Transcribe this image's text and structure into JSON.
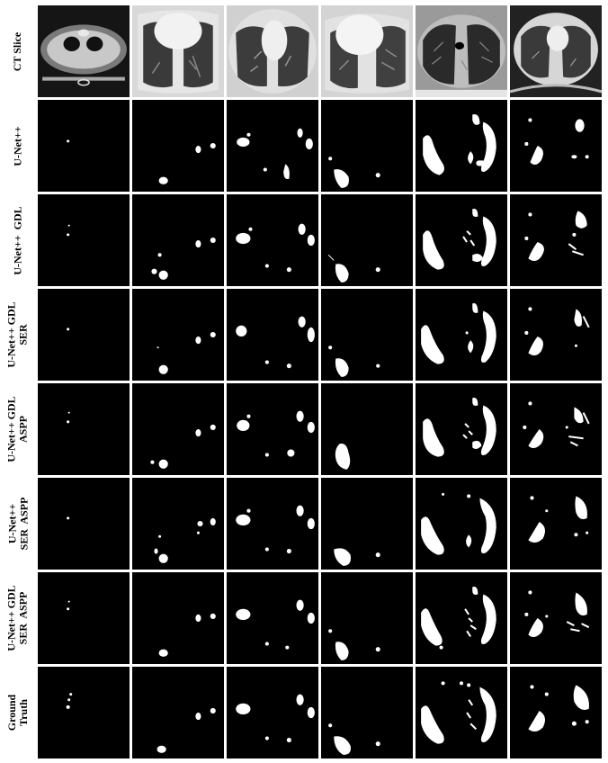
{
  "figure": {
    "rows": [
      {
        "label": "CT Slice",
        "kind": "ct"
      },
      {
        "label": "U-Net++",
        "kind": "mask"
      },
      {
        "label": "U-Net++  GDL",
        "kind": "mask"
      },
      {
        "label": "U-Net++ GDL\nSER",
        "kind": "mask"
      },
      {
        "label": "U-Net++ GDL\nASPP",
        "kind": "mask"
      },
      {
        "label": "U-Net++\nSER  ASPP",
        "kind": "mask"
      },
      {
        "label": "U-Net++ GDL\nSER  ASPP",
        "kind": "mask"
      },
      {
        "label": "Ground\nTruth",
        "kind": "mask"
      }
    ],
    "columns": 6,
    "colors": {
      "background": "#000000",
      "mask": "#ffffff",
      "border": "#ffffff"
    }
  }
}
